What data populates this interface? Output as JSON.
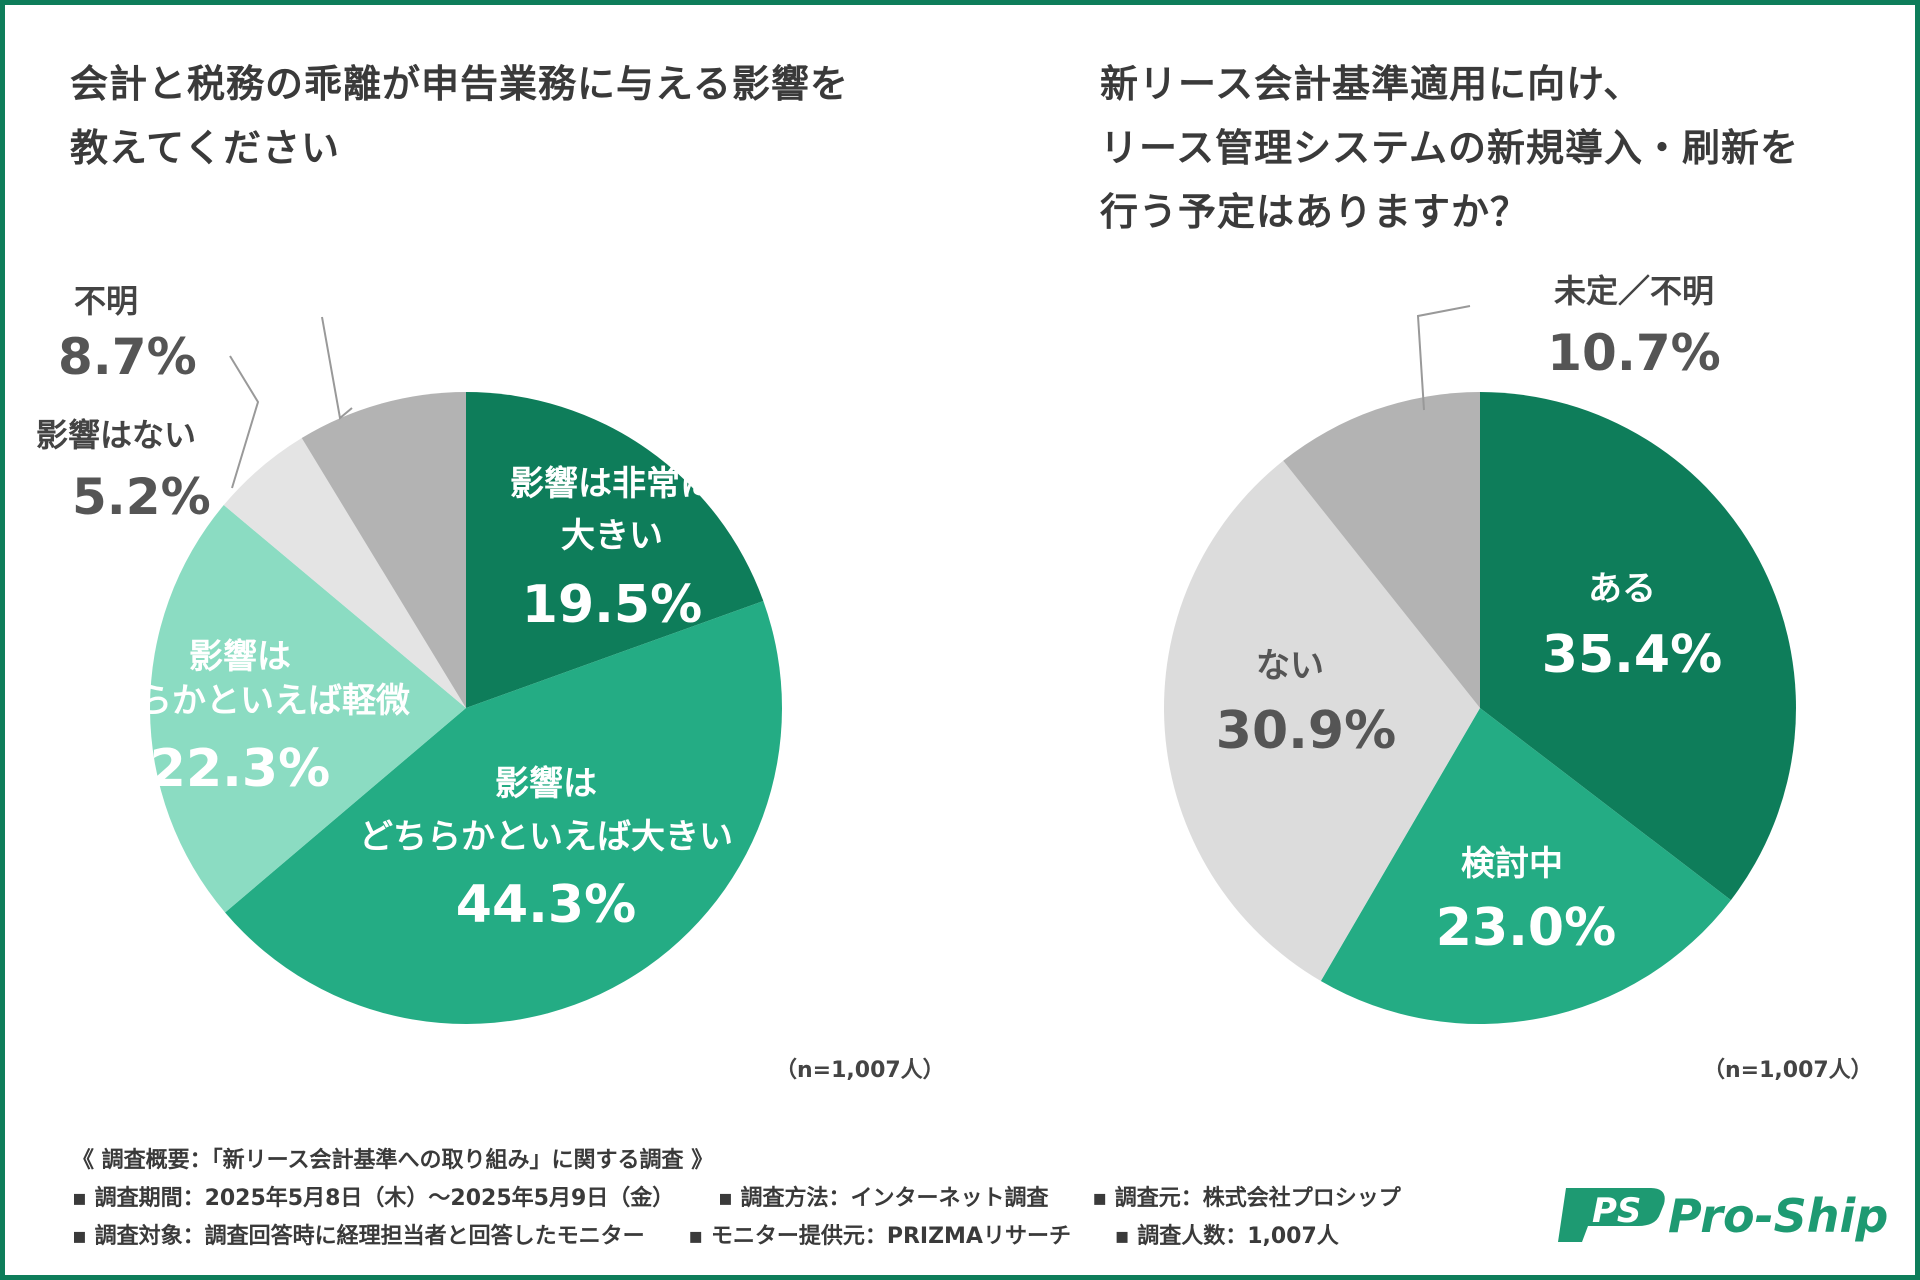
{
  "colors": {
    "border": "#0e7d5a",
    "dark_green": "#0e7d5a",
    "mid_green": "#24ac84",
    "light_green": "#8bdcc2",
    "light_gray": "#e4e4e4",
    "gray": "#b3b3b3",
    "pale_gray": "#dcdcdc"
  },
  "titles": {
    "left": [
      "会計と税務の乖離が申告業務に与える影響を",
      "教えてください"
    ],
    "right": [
      "新リース会計基準適用に向け、",
      "リース管理システムの新規導入・刷新を",
      "行う予定はありますか？"
    ]
  },
  "chart_data": [
    {
      "type": "pie",
      "title": "会計と税務の乖離が申告業務に与える影響を教えてください",
      "sample_label": "（n=1,007人）",
      "slices": [
        {
          "label": [
            "影響は非常に",
            "大きい"
          ],
          "value": 19.5,
          "value_label": "19.5%",
          "color": "#0e7d5a"
        },
        {
          "label": [
            "影響は",
            "どちらかといえば大きい"
          ],
          "value": 44.3,
          "value_label": "44.3%",
          "color": "#24ac84"
        },
        {
          "label": [
            "影響は",
            "どちらかといえば軽微"
          ],
          "value": 22.3,
          "value_label": "22.3%",
          "color": "#8bdcc2"
        },
        {
          "label": [
            "影響はない"
          ],
          "value": 5.2,
          "value_label": "5.2%",
          "color": "#e4e4e4"
        },
        {
          "label": [
            "不明"
          ],
          "value": 8.7,
          "value_label": "8.7%",
          "color": "#b3b3b3"
        }
      ]
    },
    {
      "type": "pie",
      "title": "新リース会計基準適用に向け、リース管理システムの新規導入・刷新を行う予定はありますか？",
      "sample_label": "（n=1,007人）",
      "slices": [
        {
          "label": [
            "ある"
          ],
          "value": 35.4,
          "value_label": "35.4%",
          "color": "#0e7d5a"
        },
        {
          "label": [
            "検討中"
          ],
          "value": 23.0,
          "value_label": "23.0%",
          "color": "#24ac84"
        },
        {
          "label": [
            "ない"
          ],
          "value": 30.9,
          "value_label": "30.9%",
          "color": "#dcdcdc"
        },
        {
          "label": [
            "未定／不明"
          ],
          "value": 10.7,
          "value_label": "10.7%",
          "color": "#b3b3b3"
        }
      ]
    }
  ],
  "footer": {
    "heading": "《 調査概要：「新リース会計基準への取り組み」に関する調査 》",
    "row1": [
      "▪ 調査期間：2025年5月8日（木）〜2025年5月9日（金）",
      "▪ 調査方法：インターネット調査",
      "▪ 調査元：株式会社プロシップ"
    ],
    "row2": [
      "▪ 調査対象：調査回答時に経理担当者と回答したモニター",
      "▪ モニター提供元：PRIZMAリサーチ",
      "▪ 調査人数：1,007人"
    ]
  },
  "logo": {
    "mark": "PS",
    "text": "Pro-Ship"
  }
}
